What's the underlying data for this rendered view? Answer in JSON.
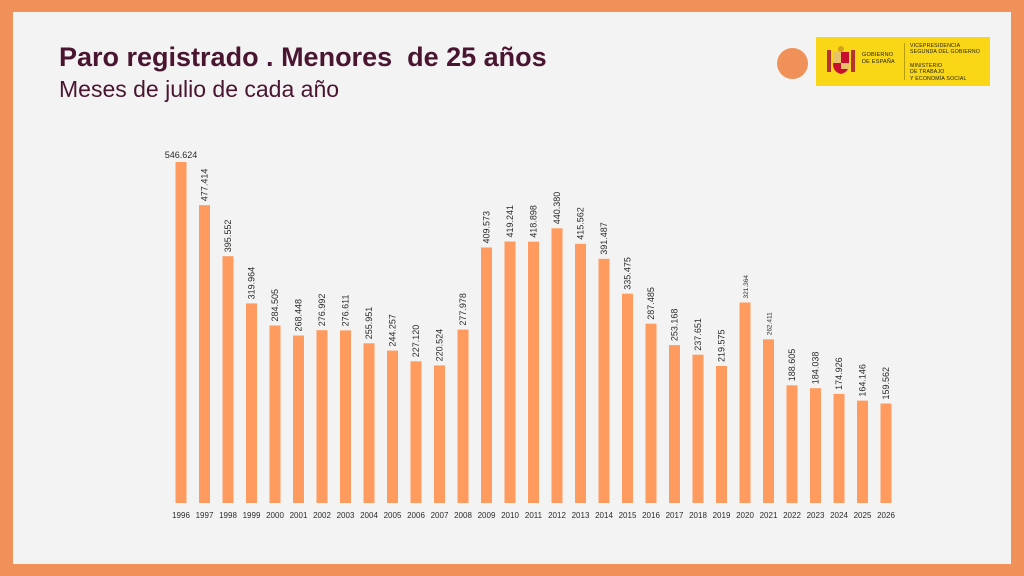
{
  "slide": {
    "title": "Paro registrado . Menores  de 25 años",
    "subtitle": "Meses de julio de cada año"
  },
  "logo": {
    "line1": "GOBIERNO\nDE ESPAÑA",
    "line2": "VICEPRESIDENCIA\nSEGUNDA DEL GOBIERNO",
    "line3": "MINISTERIO\nDE TRABAJO\nY ECONOMÍA SOCIAL",
    "color": "#F9D616"
  },
  "colors": {
    "background": "#F0915A",
    "panel": "#F3F3F3",
    "bar": "#FF9B5E",
    "title": "#4A1530"
  },
  "chart_data": {
    "type": "bar",
    "title": "Paro registrado . Menores  de 25 años",
    "subtitle": "Meses de julio de cada año",
    "categories": [
      "1996",
      "1997",
      "1998",
      "1999",
      "2000",
      "2001",
      "2002",
      "2003",
      "2004",
      "2005",
      "2006",
      "2007",
      "2008",
      "2009",
      "2010",
      "2011",
      "2012",
      "2013",
      "2014",
      "2015",
      "2016",
      "2017",
      "2018",
      "2019",
      "2020",
      "2021",
      "2022",
      "2023",
      "2024",
      "2025",
      "2026"
    ],
    "values": [
      546624,
      477414,
      395552,
      319964,
      284505,
      268448,
      276992,
      276611,
      255951,
      244257,
      227120,
      220524,
      277978,
      409573,
      419241,
      418898,
      440380,
      415562,
      391487,
      335475,
      287485,
      253168,
      237651,
      219575,
      321364,
      262411,
      188605,
      184038,
      174926,
      164146,
      159562
    ],
    "labels": [
      "546.624",
      "477.414",
      "395.552",
      "319.964",
      "284.505",
      "268.448",
      "276.992",
      "276.611",
      "255.951",
      "244.257",
      "227.120",
      "220.524",
      "277.978",
      "409.573",
      "419.241",
      "418.898",
      "440.380",
      "415.562",
      "391.487",
      "335.475",
      "287.485",
      "253.168",
      "237.651",
      "219.575",
      "321.364",
      "262.411",
      "188.605",
      "184.038",
      "174.926",
      "164.146",
      "159.562"
    ],
    "small_label_years": [
      "2020",
      "2021"
    ],
    "ylim": [
      0,
      546624
    ],
    "grid": false,
    "legend": "none",
    "xlabel": "",
    "ylabel": ""
  }
}
